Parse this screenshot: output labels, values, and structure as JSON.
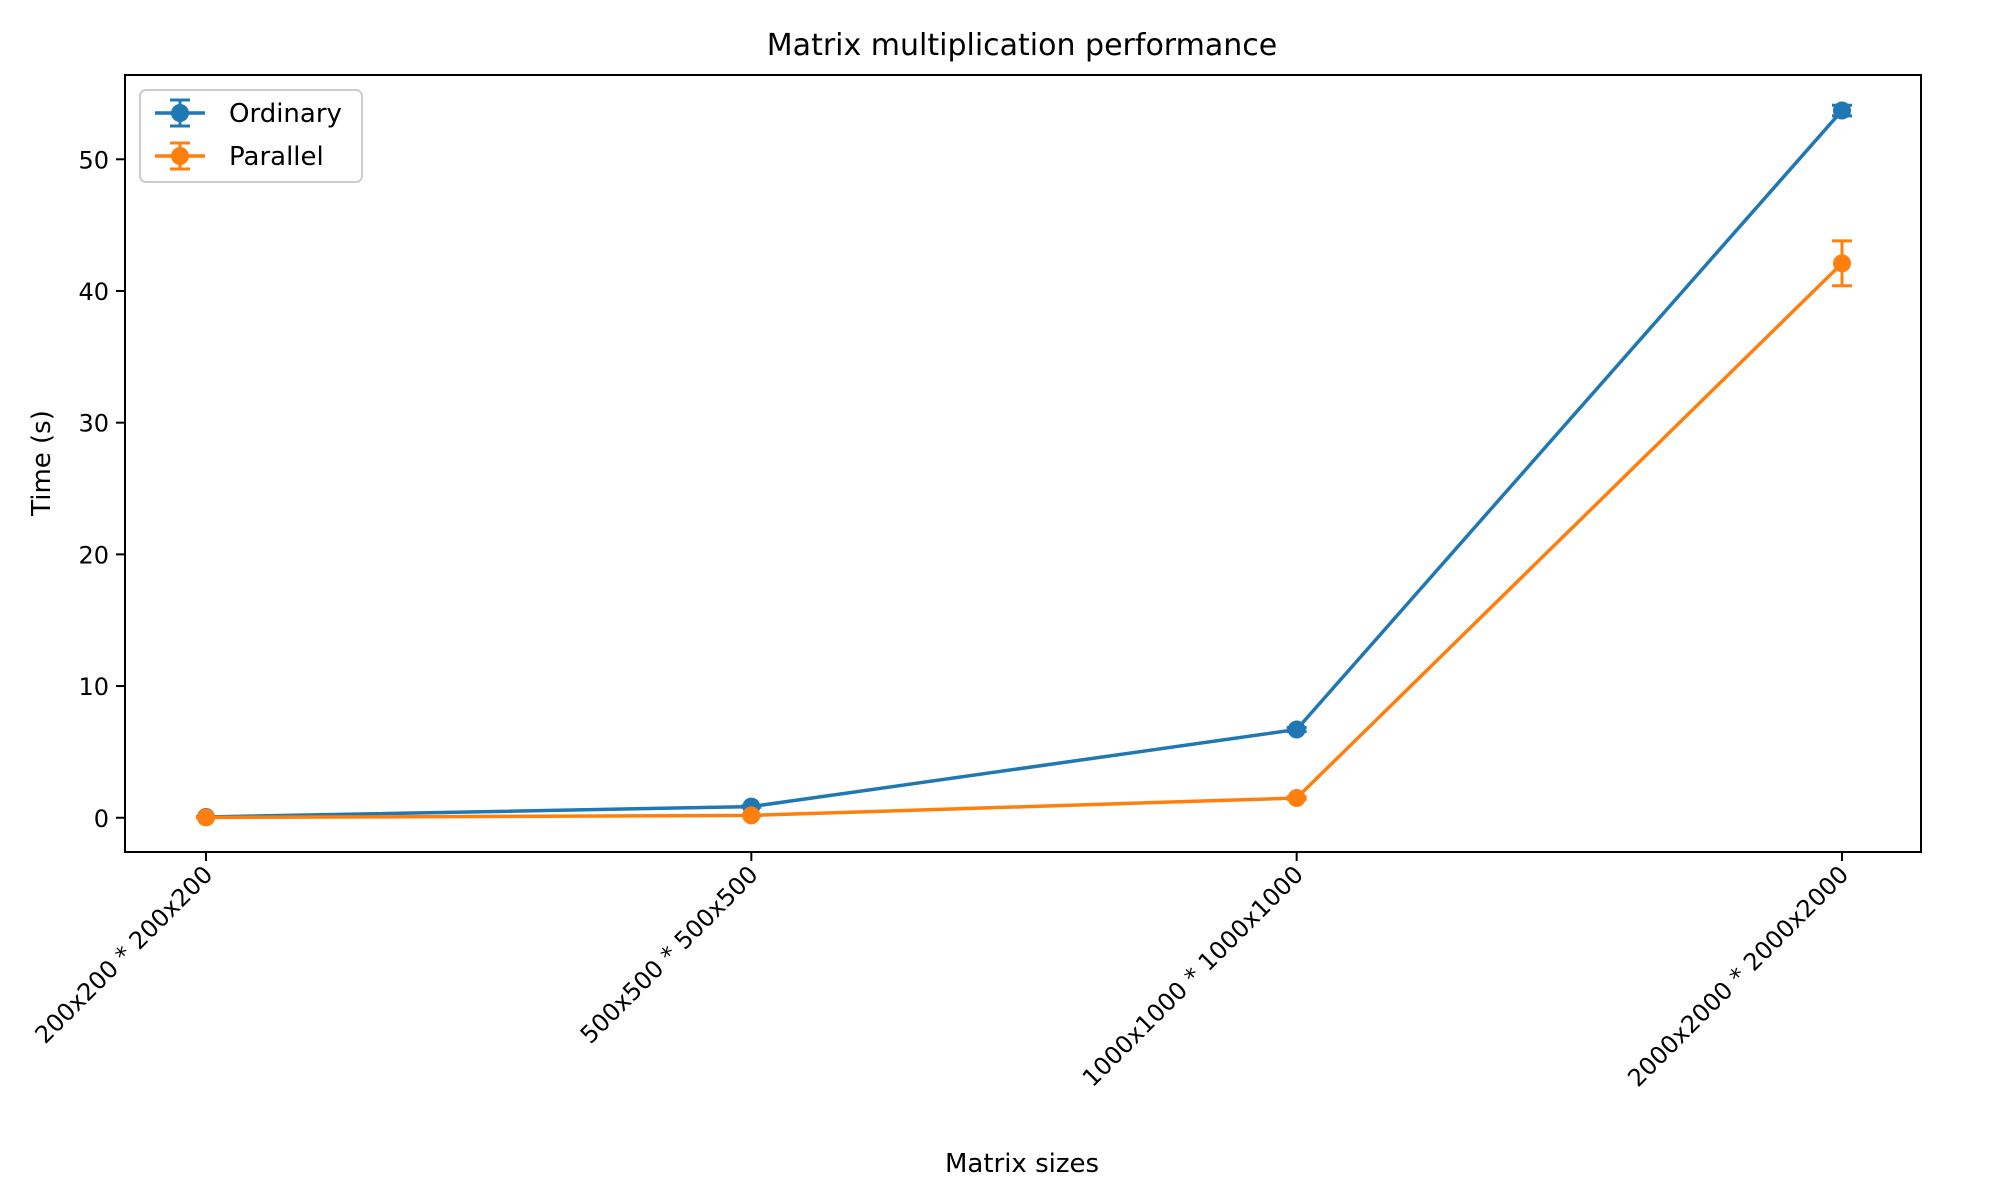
{
  "chart_data": {
    "type": "line",
    "title": "Matrix multiplication performance",
    "xlabel": "Matrix sizes",
    "ylabel": "Time (s)",
    "categories": [
      "200x200 * 200x200",
      "500x500 * 500x500",
      "1000x1000 * 1000x1000",
      "2000x2000 * 2000x2000"
    ],
    "ylim": [
      -2.6,
      56.4
    ],
    "yticks": [
      0,
      10,
      20,
      30,
      40,
      50
    ],
    "grid": false,
    "legend_position": "top-left",
    "series": [
      {
        "name": "Ordinary",
        "color": "#1f77b4",
        "values": [
          0.06,
          0.85,
          6.7,
          53.7
        ],
        "errors": [
          0.03,
          0.05,
          0.15,
          0.4
        ]
      },
      {
        "name": "Parallel",
        "color": "#ff7f0e",
        "values": [
          0.02,
          0.18,
          1.5,
          42.1
        ],
        "errors": [
          0.01,
          0.03,
          0.1,
          1.7
        ]
      }
    ]
  }
}
